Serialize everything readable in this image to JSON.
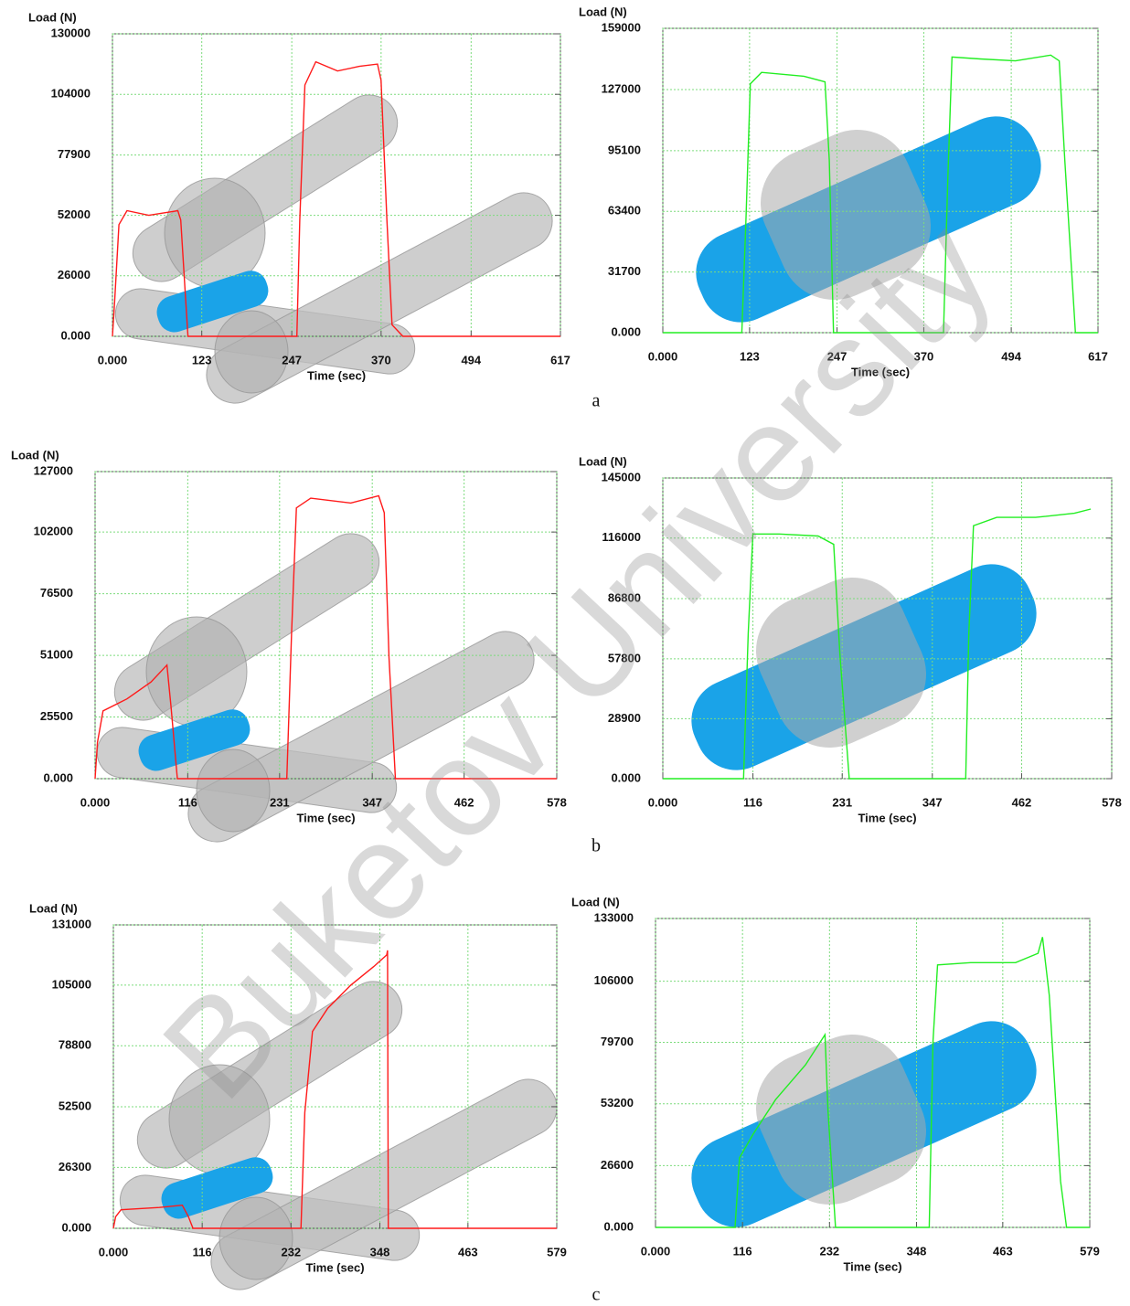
{
  "chart_data": [
    {
      "type": "line",
      "y_label": "Load (N)",
      "x_label": "Time (sec)",
      "color": "#ff1a1a",
      "xlim": [
        0,
        617
      ],
      "xticks": [
        {
          "value": 0,
          "label": "0.000"
        },
        123,
        247,
        370,
        494,
        617
      ],
      "ylim": [
        0,
        130000
      ],
      "yticks": [
        {
          "value": 0,
          "label": "0.000"
        },
        26000,
        52000,
        77900,
        104000,
        130000
      ],
      "grid": true,
      "x": [
        0,
        3,
        9,
        20,
        50,
        90,
        94,
        100,
        104,
        254,
        258,
        265,
        280,
        310,
        340,
        365,
        370,
        378,
        385,
        400,
        617
      ],
      "values": [
        0,
        15000,
        48000,
        54000,
        52000,
        54000,
        50000,
        20000,
        0,
        0,
        50000,
        108000,
        118000,
        114000,
        116000,
        117000,
        110000,
        50000,
        5000,
        0,
        0
      ]
    },
    {
      "type": "line",
      "y_label": "Load (N)",
      "x_label": "Time (sec)",
      "color": "#22ee22",
      "xlim": [
        0,
        617
      ],
      "xticks": [
        {
          "value": 0,
          "label": "0.000"
        },
        123,
        247,
        370,
        494,
        617
      ],
      "ylim": [
        0,
        159000
      ],
      "yticks": [
        {
          "value": 0,
          "label": "0.000"
        },
        31700,
        63400,
        95100,
        127000,
        159000
      ],
      "grid": true,
      "x": [
        0,
        112,
        118,
        124,
        140,
        200,
        230,
        236,
        242,
        398,
        404,
        410,
        450,
        500,
        550,
        562,
        570,
        585,
        617
      ],
      "values": [
        0,
        0,
        60000,
        130000,
        136000,
        134000,
        131000,
        90000,
        0,
        0,
        80000,
        144000,
        143000,
        142000,
        145000,
        142000,
        90000,
        0,
        0
      ]
    },
    {
      "type": "line",
      "y_label": "Load (N)",
      "x_label": "Time (sec)",
      "color": "#ff1a1a",
      "xlim": [
        0,
        578
      ],
      "xticks": [
        {
          "value": 0,
          "label": "0.000"
        },
        116,
        231,
        347,
        462,
        578
      ],
      "ylim": [
        0,
        127000
      ],
      "yticks": [
        {
          "value": 0,
          "label": "0.000"
        },
        25500,
        51000,
        76500,
        102000,
        127000
      ],
      "grid": true,
      "x": [
        0,
        3,
        10,
        40,
        70,
        90,
        95,
        103,
        240,
        246,
        252,
        270,
        320,
        355,
        362,
        368,
        376,
        578
      ],
      "values": [
        0,
        15000,
        28000,
        33000,
        40000,
        47000,
        30000,
        0,
        0,
        60000,
        112000,
        116000,
        114000,
        117000,
        110000,
        50000,
        0,
        0
      ]
    },
    {
      "type": "line",
      "y_label": "Load (N)",
      "x_label": "Time (sec)",
      "color": "#22ee22",
      "xlim": [
        0,
        578
      ],
      "xticks": [
        {
          "value": 0,
          "label": "0.000"
        },
        116,
        231,
        347,
        462,
        578
      ],
      "ylim": [
        0,
        145000
      ],
      "yticks": [
        {
          "value": 0,
          "label": "0.000"
        },
        28900,
        57800,
        86800,
        116000,
        145000
      ],
      "grid": true,
      "x": [
        0,
        104,
        110,
        116,
        150,
        200,
        220,
        228,
        240,
        390,
        394,
        400,
        430,
        480,
        530,
        551
      ],
      "values": [
        0,
        0,
        70000,
        118000,
        118000,
        117000,
        113000,
        60000,
        0,
        0,
        70000,
        122000,
        126000,
        126000,
        128000,
        130000
      ]
    },
    {
      "type": "line",
      "y_label": "Load (N)",
      "x_label": "Time (sec)",
      "color": "#ff1a1a",
      "xlim": [
        0,
        579
      ],
      "xticks": [
        {
          "value": 0,
          "label": "0.000"
        },
        116,
        232,
        348,
        463,
        579
      ],
      "ylim": [
        0,
        131000
      ],
      "yticks": [
        {
          "value": 0,
          "label": "0.000"
        },
        26300,
        52500,
        78800,
        105000,
        131000
      ],
      "grid": true,
      "x": [
        0,
        3,
        10,
        60,
        90,
        98,
        104,
        245,
        250,
        260,
        280,
        310,
        340,
        357,
        358,
        359,
        579
      ],
      "values": [
        0,
        5000,
        8000,
        9000,
        10000,
        5000,
        0,
        0,
        50000,
        85000,
        95000,
        105000,
        113000,
        118000,
        120000,
        0,
        0
      ]
    },
    {
      "type": "line",
      "y_label": "Load (N)",
      "x_label": "Time (sec)",
      "color": "#22ee22",
      "xlim": [
        0,
        579
      ],
      "xticks": [
        {
          "value": 0,
          "label": "0.000"
        },
        116,
        232,
        348,
        463,
        579
      ],
      "ylim": [
        0,
        133000
      ],
      "yticks": [
        {
          "value": 0,
          "label": "0.000"
        },
        26600,
        53200,
        79700,
        106000,
        133000
      ],
      "grid": true,
      "x": [
        0,
        106,
        112,
        130,
        160,
        200,
        226,
        230,
        240,
        365,
        370,
        376,
        420,
        480,
        510,
        516,
        525,
        540,
        548,
        579
      ],
      "values": [
        0,
        0,
        30000,
        40000,
        55000,
        70000,
        83000,
        50000,
        0,
        0,
        80000,
        113000,
        114000,
        114000,
        118000,
        125000,
        100000,
        20000,
        0,
        0
      ]
    }
  ],
  "panel_labels": [
    "a",
    "b",
    "c"
  ],
  "watermark": "Buketov University"
}
